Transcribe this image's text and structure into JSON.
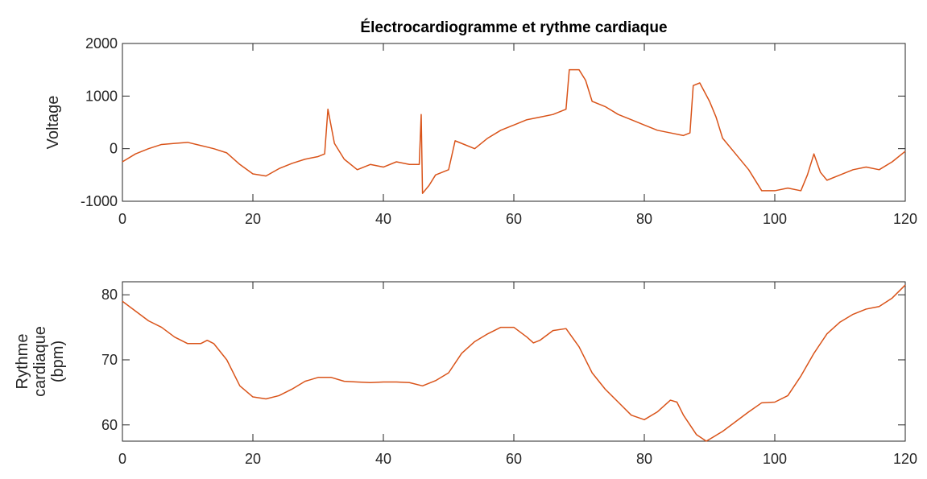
{
  "chart_data": [
    {
      "type": "line",
      "title": "Électrocardiogramme et rythme cardiaque",
      "ylabel": "Voltage",
      "xlim": [
        0,
        120
      ],
      "xticks": [
        0,
        20,
        40,
        60,
        80,
        100,
        120
      ],
      "ylim": [
        -1000,
        2000
      ],
      "yticks": [
        -1000,
        0,
        1000,
        2000
      ],
      "series": [
        {
          "color": "#d95319",
          "x": [
            0,
            2,
            4,
            6,
            8,
            10,
            12,
            14,
            16,
            18,
            20,
            22,
            24,
            26,
            28,
            30,
            31,
            31.5,
            32.5,
            34,
            36,
            38,
            40,
            42,
            44,
            45.5,
            45.8,
            46,
            47,
            48,
            50,
            51,
            52,
            54,
            56,
            58,
            60,
            62,
            64,
            66,
            68,
            68.5,
            70,
            71,
            72,
            74,
            76,
            78,
            80,
            82,
            84,
            86,
            87,
            87.5,
            88.5,
            90,
            91,
            92,
            94,
            96,
            98,
            100,
            102,
            104,
            105,
            106,
            107,
            108,
            110,
            112,
            114,
            116,
            118,
            120
          ],
          "values": [
            -250,
            -100,
            0,
            80,
            100,
            120,
            60,
            0,
            -80,
            -300,
            -480,
            -520,
            -380,
            -280,
            -200,
            -150,
            -100,
            750,
            100,
            -200,
            -400,
            -300,
            -350,
            -250,
            -300,
            -300,
            650,
            -850,
            -700,
            -500,
            -400,
            150,
            100,
            0,
            200,
            350,
            450,
            550,
            600,
            650,
            750,
            1500,
            1500,
            1300,
            900,
            800,
            650,
            550,
            450,
            350,
            300,
            250,
            300,
            1200,
            1250,
            900,
            600,
            200,
            -100,
            -400,
            -800,
            -800,
            -750,
            -800,
            -500,
            -100,
            -450,
            -600,
            -500,
            -400,
            -350,
            -400,
            -250,
            -50
          ]
        }
      ]
    },
    {
      "type": "line",
      "ylabel": [
        "Rythme",
        "cardiaque",
        "(bpm)"
      ],
      "xlim": [
        0,
        120
      ],
      "xticks": [
        0,
        20,
        40,
        60,
        80,
        100,
        120
      ],
      "ylim": [
        57.5,
        82
      ],
      "yticks": [
        60,
        70,
        80
      ],
      "series": [
        {
          "color": "#d95319",
          "x": [
            0,
            2,
            4,
            6,
            8,
            10,
            12,
            13,
            14,
            16,
            18,
            20,
            22,
            24,
            26,
            28,
            30,
            32,
            34,
            36,
            38,
            40,
            42,
            44,
            46,
            48,
            50,
            52,
            54,
            56,
            58,
            60,
            62,
            63,
            64,
            66,
            68,
            70,
            72,
            74,
            76,
            78,
            80,
            82,
            84,
            85,
            86,
            88,
            89.5,
            92,
            94,
            96,
            98,
            100,
            102,
            104,
            106,
            108,
            110,
            112,
            114,
            116,
            118,
            120
          ],
          "values": [
            79,
            77.5,
            76,
            75,
            73.5,
            72.5,
            72.5,
            73,
            72.5,
            70,
            66,
            64.3,
            64,
            64.5,
            65.5,
            66.7,
            67.3,
            67.3,
            66.7,
            66.6,
            66.5,
            66.6,
            66.6,
            66.5,
            66,
            66.8,
            68,
            71,
            72.8,
            74,
            75,
            75,
            73.5,
            72.6,
            73,
            74.5,
            74.8,
            72,
            68,
            65.5,
            63.5,
            61.5,
            60.8,
            62,
            63.8,
            63.5,
            61.5,
            58.5,
            57.5,
            59,
            60.5,
            62,
            63.4,
            63.5,
            64.5,
            67.5,
            71,
            74,
            75.8,
            77,
            77.8,
            78.2,
            79.5,
            81.5
          ]
        }
      ]
    }
  ]
}
